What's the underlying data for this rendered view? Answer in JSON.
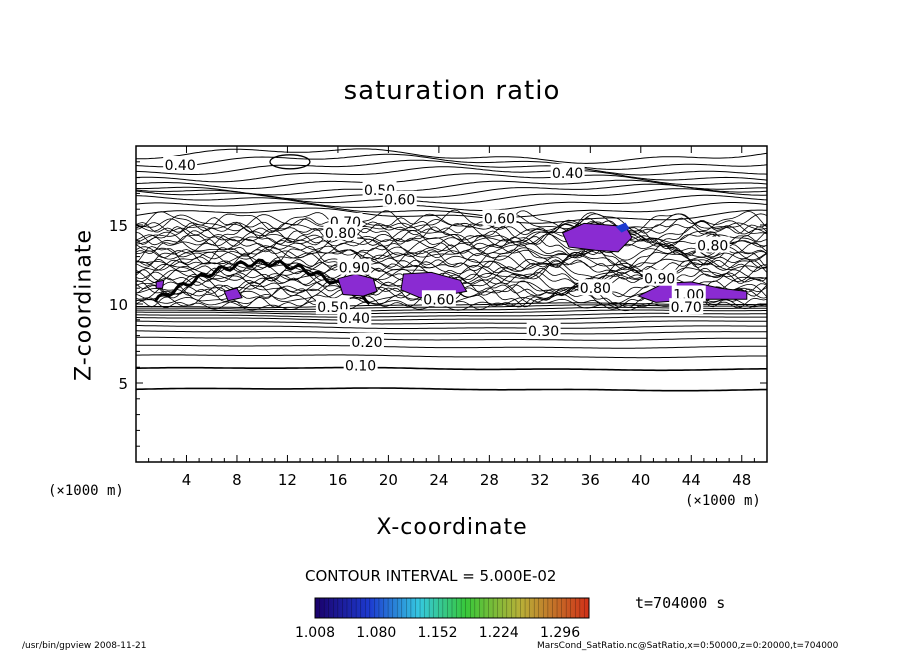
{
  "chart_data": {
    "type": "contour",
    "title": "saturation ratio",
    "xlabel": "X-coordinate",
    "ylabel": "Z-coordinate",
    "x_unit": "(×1000 m)",
    "y_unit": "(×1000 m)",
    "xlim": [
      0,
      50
    ],
    "ylim": [
      0,
      20
    ],
    "x_ticks": [
      4,
      8,
      12,
      16,
      20,
      24,
      28,
      32,
      36,
      40,
      44,
      48
    ],
    "y_ticks": [
      5,
      10,
      15
    ],
    "contour_labels": [
      {
        "text": "0.40",
        "x": 3.5,
        "z": 18.8
      },
      {
        "text": "0.40",
        "x": 34.2,
        "z": 18.3
      },
      {
        "text": "0.50",
        "x": 19.3,
        "z": 17.2
      },
      {
        "text": "0.60",
        "x": 20.9,
        "z": 16.6
      },
      {
        "text": "0.70",
        "x": 16.6,
        "z": 15.2
      },
      {
        "text": "0.80",
        "x": 16.2,
        "z": 14.5
      },
      {
        "text": "0.90",
        "x": 17.3,
        "z": 12.3
      },
      {
        "text": "0.60",
        "x": 28.8,
        "z": 15.4
      },
      {
        "text": "0.80",
        "x": 45.7,
        "z": 13.7
      },
      {
        "text": "0.90",
        "x": 41.5,
        "z": 11.6
      },
      {
        "text": "0.80",
        "x": 36.4,
        "z": 11.0
      },
      {
        "text": "1.00",
        "x": 43.8,
        "z": 10.6
      },
      {
        "text": "0.70",
        "x": 43.6,
        "z": 9.8
      },
      {
        "text": "0.60",
        "x": 24.0,
        "z": 10.3
      },
      {
        "text": "0.50",
        "x": 15.6,
        "z": 9.8
      },
      {
        "text": "0.40",
        "x": 17.3,
        "z": 9.1
      },
      {
        "text": "0.30",
        "x": 32.3,
        "z": 8.3
      },
      {
        "text": "0.20",
        "x": 18.3,
        "z": 7.6
      },
      {
        "text": "0.10",
        "x": 17.8,
        "z": 6.1
      }
    ],
    "contour_interval": "CONTOUR INTERVAL = 5.000E-02",
    "colorbar": {
      "range": [
        1.008,
        1.33
      ],
      "ticks": [
        "1.008",
        "1.080",
        "1.152",
        "1.224",
        "1.296"
      ]
    },
    "time": "t=704000 s",
    "shade_color": "#8a2bd2"
  },
  "footer": {
    "left": "/usr/bin/gpview   2008-11-21",
    "right": "MarsCond_SatRatio.nc@SatRatio,x=0:50000,z=0:20000,t=704000"
  }
}
